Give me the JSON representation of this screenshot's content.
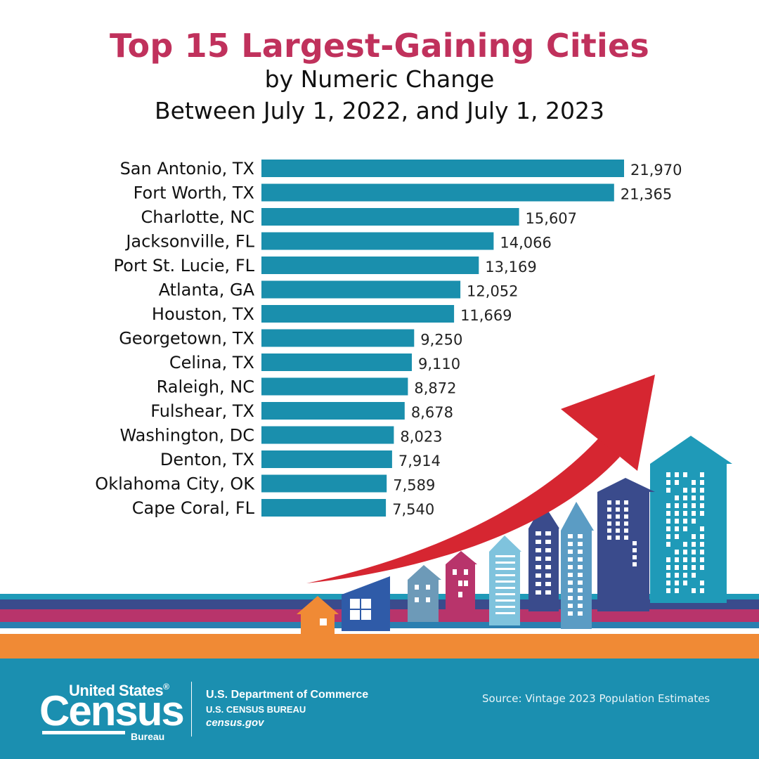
{
  "title": "Top 15 Largest-Gaining Cities",
  "subtitle_line1": "by Numeric Change",
  "subtitle_line2": "Between July 1, 2022, and July 1, 2023",
  "colors": {
    "title": "#c0315c",
    "bar": "#1a8fad",
    "arrow": "#d62631",
    "footer": "#1b8fb0",
    "stripe_orange": "#f08a35",
    "stripe_magenta": "#b8346b",
    "stripe_navy": "#3a4b8c",
    "stripe_teal": "#1f9ab8"
  },
  "chart_data": {
    "type": "bar",
    "orientation": "horizontal",
    "categories": [
      "San Antonio, TX",
      "Fort Worth, TX",
      "Charlotte, NC",
      "Jacksonville, FL",
      "Port St. Lucie, FL",
      "Atlanta, GA",
      "Houston, TX",
      "Georgetown, TX",
      "Celina, TX",
      "Raleigh, NC",
      "Fulshear, TX",
      "Washington, DC",
      "Denton, TX",
      "Oklahoma City, OK",
      "Cape Coral, FL"
    ],
    "values": [
      21970,
      21365,
      15607,
      14066,
      13169,
      12052,
      11669,
      9250,
      9110,
      8872,
      8678,
      8023,
      7914,
      7589,
      7540
    ],
    "value_labels": [
      "21,970",
      "21,365",
      "15,607",
      "14,066",
      "13,169",
      "12,052",
      "11,669",
      "9,250",
      "9,110",
      "8,872",
      "8,678",
      "8,023",
      "7,914",
      "7,589",
      "7,540"
    ],
    "title": "Top 15 Largest-Gaining Cities",
    "xlabel": "",
    "ylabel": "",
    "grid": false
  },
  "footer": {
    "logo_line1": "United States",
    "logo_line2": "Census",
    "logo_line3": "Bureau",
    "registered": "®",
    "dept_line1": "U.S. Department of Commerce",
    "dept_line2": "U.S. CENSUS BUREAU",
    "dept_line3": "census.gov",
    "source": "Source: Vintage 2023 Population Estimates"
  }
}
